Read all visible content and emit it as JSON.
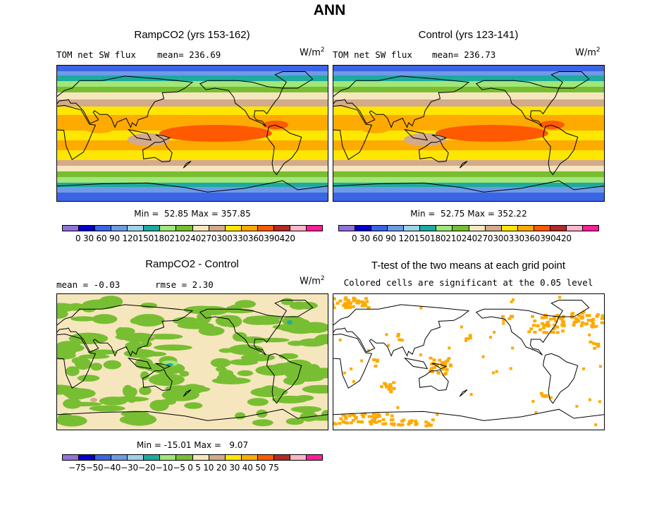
{
  "title": "ANN",
  "panels": [
    {
      "title": "RampCO2 (yrs 153-162)",
      "left_label": "TOM net SW flux",
      "stat": "mean= 236.69",
      "units": "W/m",
      "units_exp": "2",
      "minmax": "Min =  52.85 Max = 357.85"
    },
    {
      "title": "Control (yrs 123-141)",
      "left_label": "TOM net SW flux",
      "stat": "mean= 236.73",
      "units": "W/m",
      "units_exp": "2",
      "minmax": "Min =  52.75 Max = 352.22"
    },
    {
      "title": "RampCO2 - Control",
      "left_label": "mean =  -0.03",
      "stat": "rmse =   2.30",
      "units": "W/m",
      "units_exp": "2",
      "minmax": "Min = -15.01 Max =   9.07"
    },
    {
      "title": "T-test of the two means at each grid point",
      "subtitle": "Colored cells are significant at the 0.05 level"
    }
  ],
  "colorbar_abs": {
    "ticks": "0  30  60  90 120150180210240270300330360390420",
    "colors": [
      "#9370db",
      "#0000c8",
      "#3c64e6",
      "#6e9be6",
      "#a0d2e6",
      "#1eaaa0",
      "#a0e678",
      "#78be32",
      "#f5e6be",
      "#d2aa8c",
      "#ffe600",
      "#ffaa00",
      "#ff5a00",
      "#b42828",
      "#ffb4c8",
      "#ff1e96"
    ]
  },
  "colorbar_diff": {
    "ticks": "−75−50−40−30−20−10−5   0   5  10  20  30  40  50  75",
    "colors": [
      "#9370db",
      "#0000c8",
      "#3c64e6",
      "#6e9be6",
      "#a0d2e6",
      "#1eaaa0",
      "#a0e678",
      "#78be32",
      "#f5e6be",
      "#d2aa8c",
      "#ffe600",
      "#ffaa00",
      "#ff5a00",
      "#b42828",
      "#ffb4c8",
      "#ff1e96"
    ]
  },
  "map_colors": {
    "sw_bands": [
      "#3c64e6",
      "#6e9be6",
      "#1eaaa0",
      "#a0e678",
      "#78be32",
      "#f5e6be",
      "#d2aa8c",
      "#ffe600",
      "#ffaa00",
      "#ff5a00"
    ],
    "diff_bg": "#f5e6be",
    "diff_green": "#78be32",
    "diff_light": "#a0e678",
    "diff_tan": "#d2aa8c",
    "ttest_cell": "#ffaa00"
  }
}
